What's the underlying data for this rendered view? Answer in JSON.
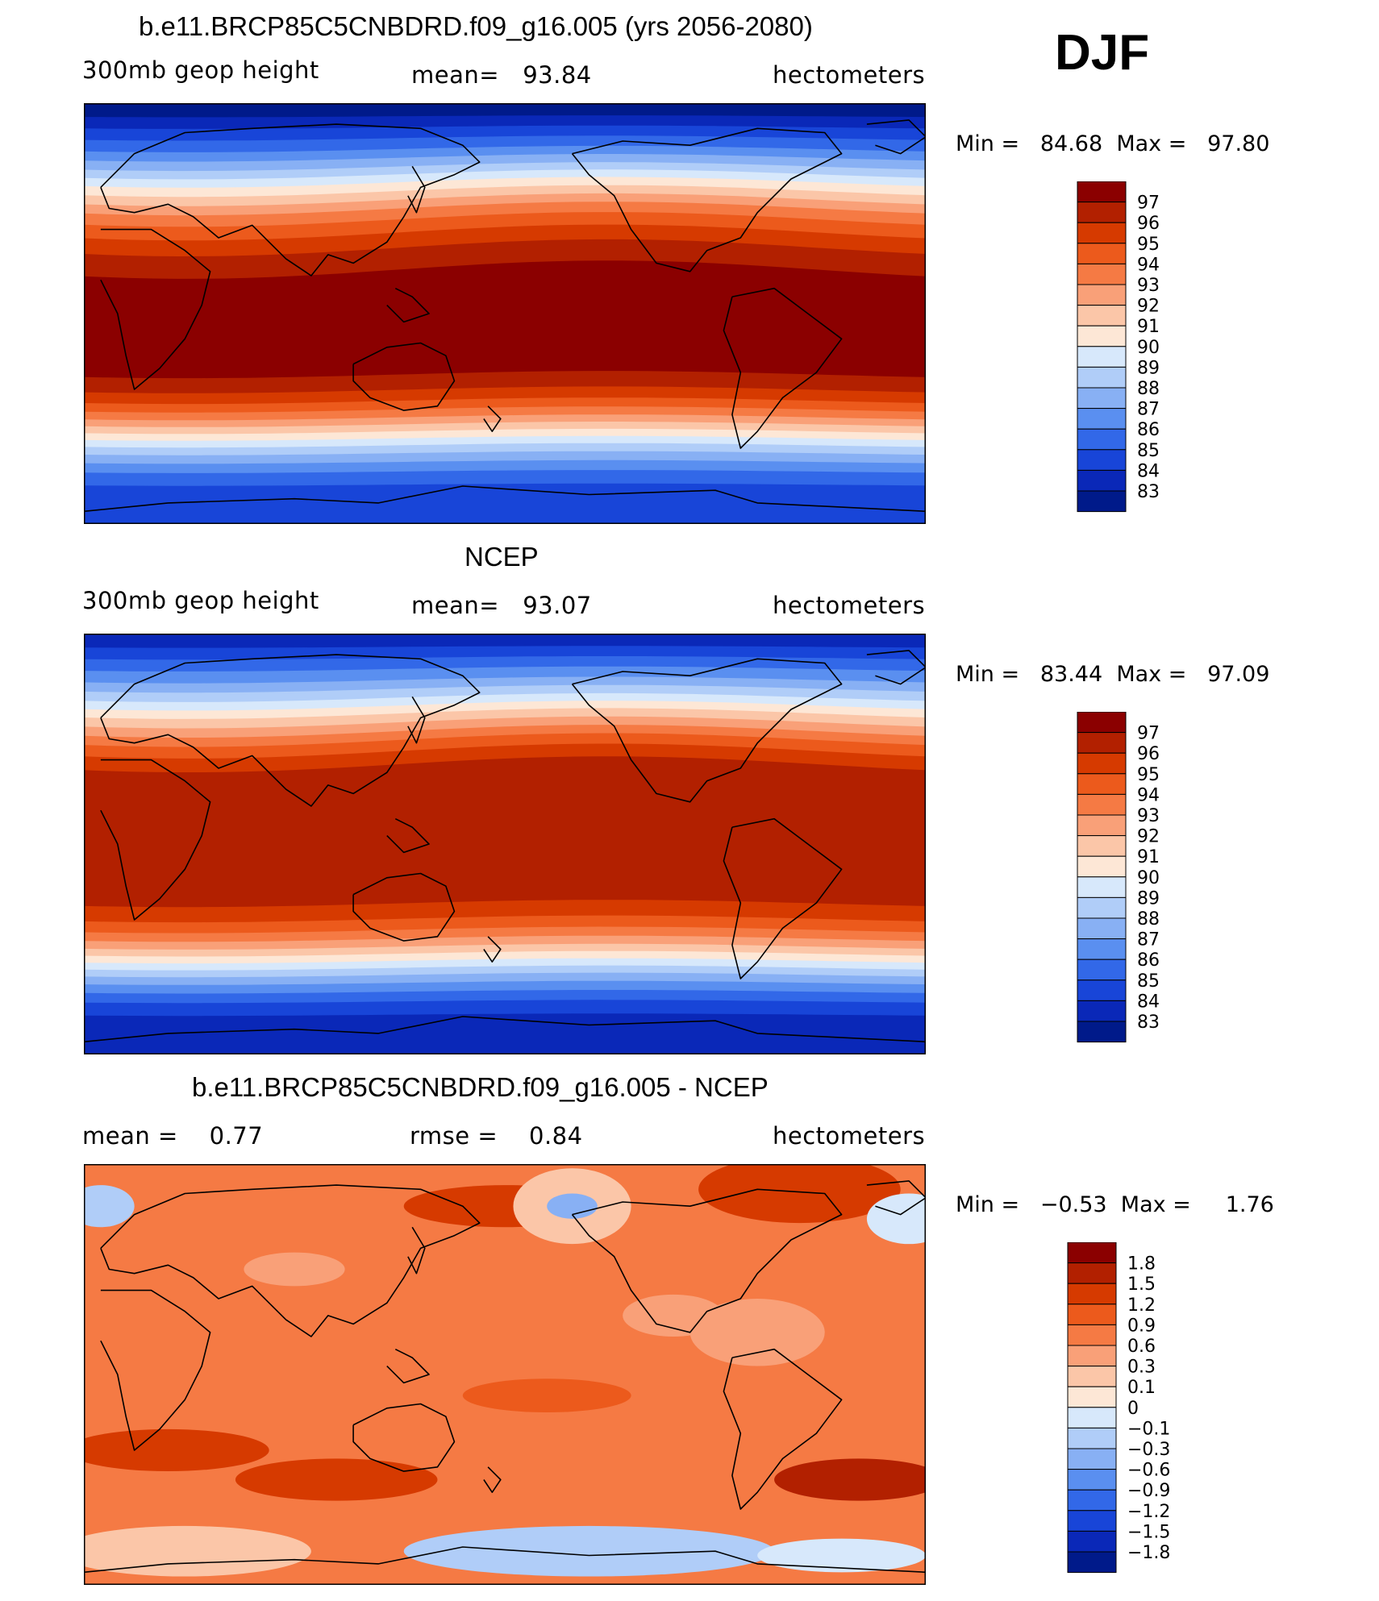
{
  "season": "DJF",
  "panels": [
    {
      "title": "b.e11.BRCP85C5CNBDRD.f09_g16.005 (yrs 2056-2080)",
      "variable": "300mb geop height",
      "stat1": "mean=   93.84",
      "stat2": "",
      "units": "hectometers",
      "minmax": "Min =   84.68  Max =   97.80",
      "colorbar": {
        "labels": [
          "97",
          "96",
          "95",
          "94",
          "93",
          "92",
          "91",
          "90",
          "89",
          "88",
          "87",
          "86",
          "85",
          "84",
          "83"
        ],
        "colors": [
          "#8b0000",
          "#b22000",
          "#d63a00",
          "#ec5a1c",
          "#f57a44",
          "#f9a078",
          "#fbc6a8",
          "#fde7d6",
          "#d7e8fb",
          "#b0cdf8",
          "#88b0f4",
          "#5a8ff0",
          "#3268e8",
          "#1845d8",
          "#0a28b8",
          "#001a8a"
        ]
      },
      "map": {
        "field": "full",
        "band_order": [
          15,
          14,
          13,
          12,
          11,
          10,
          9,
          8,
          7,
          6,
          5,
          4,
          3,
          2,
          1,
          0,
          1,
          2,
          3,
          4,
          5,
          6,
          7,
          8,
          9,
          10,
          11,
          12,
          13
        ],
        "band_fracs": [
          0.03,
          0.025,
          0.025,
          0.025,
          0.02,
          0.02,
          0.018,
          0.018,
          0.02,
          0.02,
          0.02,
          0.025,
          0.03,
          0.035,
          0.05,
          0.24,
          0.035,
          0.025,
          0.02,
          0.018,
          0.016,
          0.016,
          0.016,
          0.016,
          0.018,
          0.02,
          0.022,
          0.03,
          0.09
        ]
      }
    },
    {
      "title": "NCEP",
      "variable": "300mb geop height",
      "stat1": "mean=   93.07",
      "stat2": "",
      "units": "hectometers",
      "minmax": "Min =   83.44  Max =   97.09",
      "colorbar": {
        "labels": [
          "97",
          "96",
          "95",
          "94",
          "93",
          "92",
          "91",
          "90",
          "89",
          "88",
          "87",
          "86",
          "85",
          "84",
          "83"
        ],
        "colors": [
          "#8b0000",
          "#b22000",
          "#d63a00",
          "#ec5a1c",
          "#f57a44",
          "#f9a078",
          "#fbc6a8",
          "#fde7d6",
          "#d7e8fb",
          "#b0cdf8",
          "#88b0f4",
          "#5a8ff0",
          "#3268e8",
          "#1845d8",
          "#0a28b8",
          "#001a8a"
        ]
      },
      "map": {
        "field": "full",
        "band_order": [
          14,
          13,
          12,
          11,
          10,
          9,
          8,
          7,
          6,
          5,
          4,
          3,
          2,
          1,
          1,
          1,
          2,
          3,
          4,
          5,
          6,
          7,
          8,
          9,
          10,
          11,
          12,
          13,
          14
        ],
        "band_fracs": [
          0.03,
          0.025,
          0.025,
          0.025,
          0.02,
          0.02,
          0.018,
          0.018,
          0.02,
          0.02,
          0.02,
          0.025,
          0.03,
          0.035,
          0.19,
          0.09,
          0.035,
          0.025,
          0.02,
          0.018,
          0.016,
          0.016,
          0.016,
          0.016,
          0.018,
          0.02,
          0.022,
          0.03,
          0.09
        ]
      }
    },
    {
      "title": "b.e11.BRCP85C5CNBDRD.f09_g16.005 - NCEP",
      "variable": "",
      "stat1": "mean =    0.77",
      "stat2": "rmse =    0.84",
      "units": "hectometers",
      "minmax": "Min =   −0.53  Max =     1.76",
      "colorbar": {
        "labels": [
          "1.8",
          "1.5",
          "1.2",
          "0.9",
          "0.6",
          "0.3",
          "0.1",
          "0",
          "−0.1",
          "−0.3",
          "−0.6",
          "−0.9",
          "−1.2",
          "−1.5",
          "−1.8"
        ],
        "colors": [
          "#8b0000",
          "#b22000",
          "#d63a00",
          "#ec5a1c",
          "#f57a44",
          "#f9a078",
          "#fbc6a8",
          "#fde7d6",
          "#d7e8fb",
          "#b0cdf8",
          "#88b0f4",
          "#5a8ff0",
          "#3268e8",
          "#1845d8",
          "#0a28b8",
          "#001a8a"
        ]
      },
      "map": {
        "field": "diff",
        "base_color": "#f57a44"
      }
    }
  ]
}
